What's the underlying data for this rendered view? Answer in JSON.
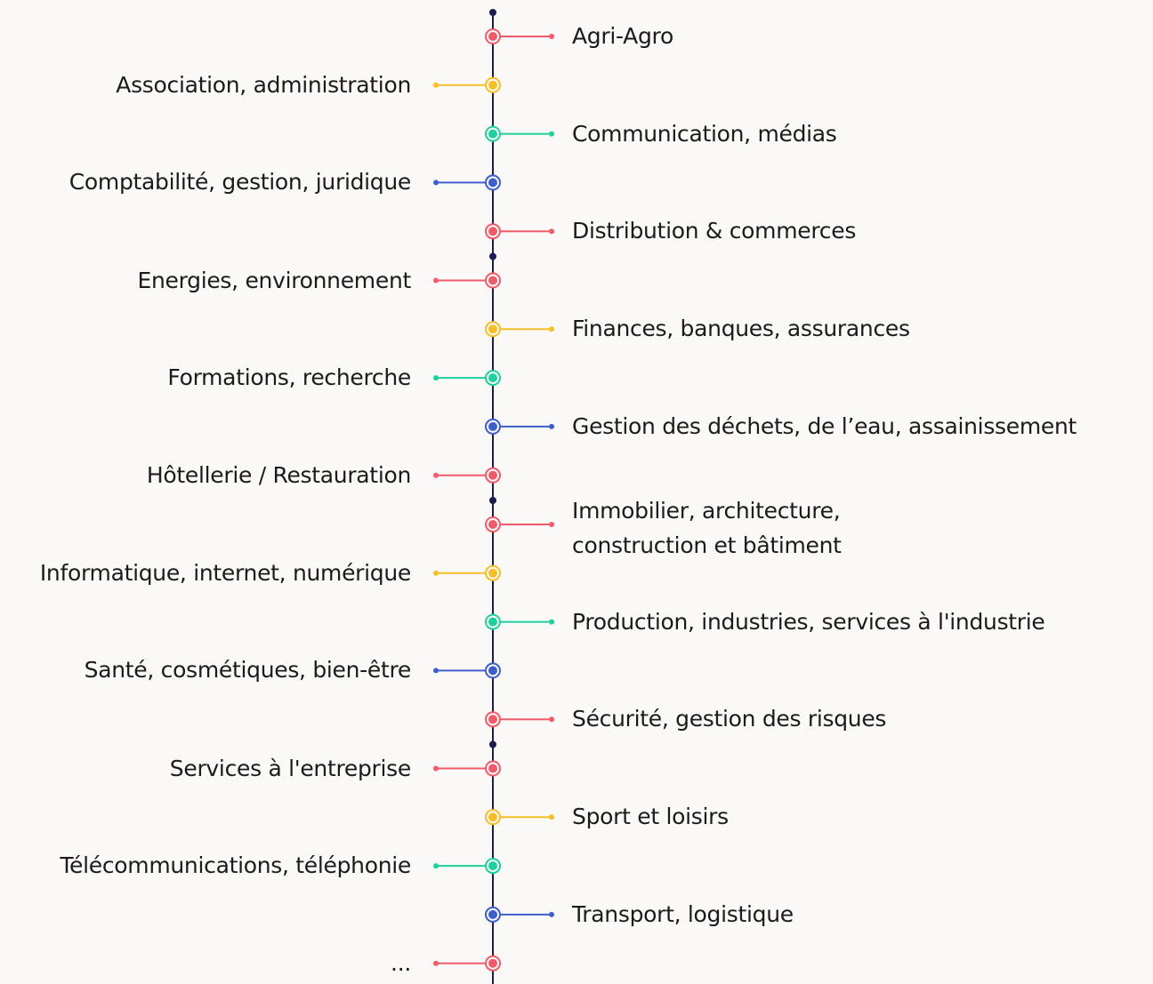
{
  "items": [
    {
      "lines": [
        "Agri-Agro"
      ]
    },
    {
      "lines": [
        "Association, administration"
      ]
    },
    {
      "lines": [
        "Communication, médias"
      ]
    },
    {
      "lines": [
        "Comptabilité, gestion, juridique"
      ]
    },
    {
      "lines": [
        "Distribution & commerces"
      ]
    },
    {
      "lines": [
        "Energies, environnement"
      ]
    },
    {
      "lines": [
        "Finances, banques, assurances"
      ]
    },
    {
      "lines": [
        "Formations, recherche"
      ]
    },
    {
      "lines": [
        "Gestion des déchets, de l’eau, assainissement"
      ]
    },
    {
      "lines": [
        "Hôtellerie / Restauration"
      ]
    },
    {
      "lines": [
        "Immobilier, architecture,",
        "construction et bâtiment"
      ]
    },
    {
      "lines": [
        "Informatique, internet, numérique"
      ]
    },
    {
      "lines": [
        "Production, industries, services à l'industrie"
      ]
    },
    {
      "lines": [
        "Santé, cosmétiques, bien-être"
      ]
    },
    {
      "lines": [
        "Sécurité, gestion des risques"
      ]
    },
    {
      "lines": [
        "Services à l'entreprise"
      ]
    },
    {
      "lines": [
        "Sport et loisirs"
      ]
    },
    {
      "lines": [
        "Télécommunications, téléphonie"
      ]
    },
    {
      "lines": [
        "Transport, logistique"
      ]
    },
    {
      "lines": [
        "..."
      ]
    }
  ]
}
